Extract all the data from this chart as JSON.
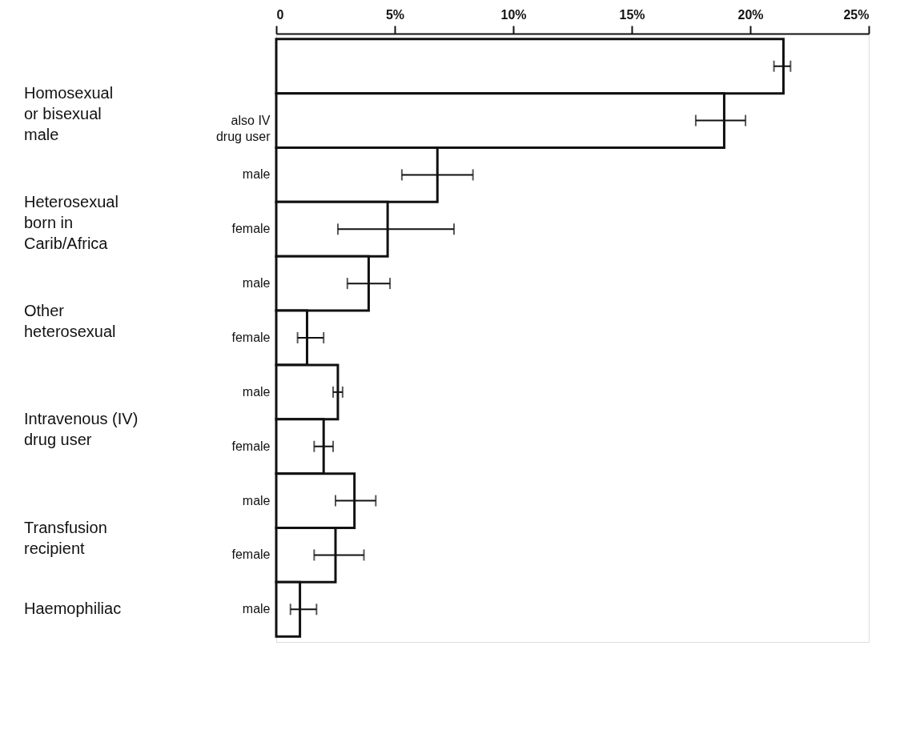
{
  "chart_data": {
    "type": "bar",
    "orientation": "horizontal",
    "categories": [
      null,
      "also IV\ndrug user",
      "male",
      "female",
      "male",
      "female",
      "male",
      "female",
      "male",
      "female",
      "male"
    ],
    "values": [
      21.4,
      18.9,
      6.8,
      4.7,
      3.9,
      1.3,
      2.6,
      2.0,
      3.3,
      2.5,
      1.0
    ],
    "errors": [
      [
        21.0,
        21.7
      ],
      [
        17.7,
        19.8
      ],
      [
        5.3,
        8.3
      ],
      [
        2.6,
        7.5
      ],
      [
        3.0,
        4.8
      ],
      [
        0.9,
        2.0
      ],
      [
        2.4,
        2.8
      ],
      [
        1.6,
        2.4
      ],
      [
        2.5,
        4.2
      ],
      [
        1.6,
        3.7
      ],
      [
        0.6,
        1.7
      ]
    ],
    "color": "#ffffff",
    "xlim": [
      0,
      25
    ],
    "xticks": [
      0,
      {
        "value": 5,
        "label": "5%"
      },
      {
        "value": 10,
        "label": "10%"
      },
      {
        "value": 15,
        "label": "15%"
      },
      {
        "value": 20,
        "label": "20%"
      },
      {
        "value": 25,
        "label": "25%"
      }
    ],
    "annotations": [
      "Homosexual\nor bisexual\nmale",
      "Heterosexual\nborn in\nCarib/Africa",
      "Other\nheterosexual",
      "Intravenous (IV)\ndrug user",
      "Transfusion\nrecipient",
      "Haemophiliac"
    ],
    "grid": false
  }
}
